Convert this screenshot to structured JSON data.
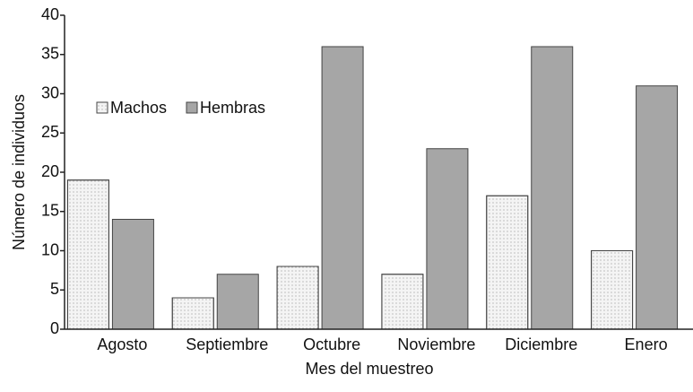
{
  "chart_data": {
    "type": "bar",
    "xlabel": "Mes del muestreo",
    "ylabel": "Número de individuos",
    "categories": [
      "Agosto",
      "Septiembre",
      "Octubre",
      "Noviembre",
      "Diciembre",
      "Enero"
    ],
    "series": [
      {
        "name": "Machos",
        "color": "#f4f4f4",
        "values": [
          19,
          4,
          8,
          7,
          17,
          10
        ]
      },
      {
        "name": "Hembras",
        "color": "#a6a6a6",
        "values": [
          14,
          7,
          36,
          23,
          36,
          31
        ]
      }
    ],
    "ylim": [
      0,
      40
    ],
    "yticks": [
      0,
      5,
      10,
      15,
      20,
      25,
      30,
      35,
      40
    ],
    "legend": "upper left"
  }
}
